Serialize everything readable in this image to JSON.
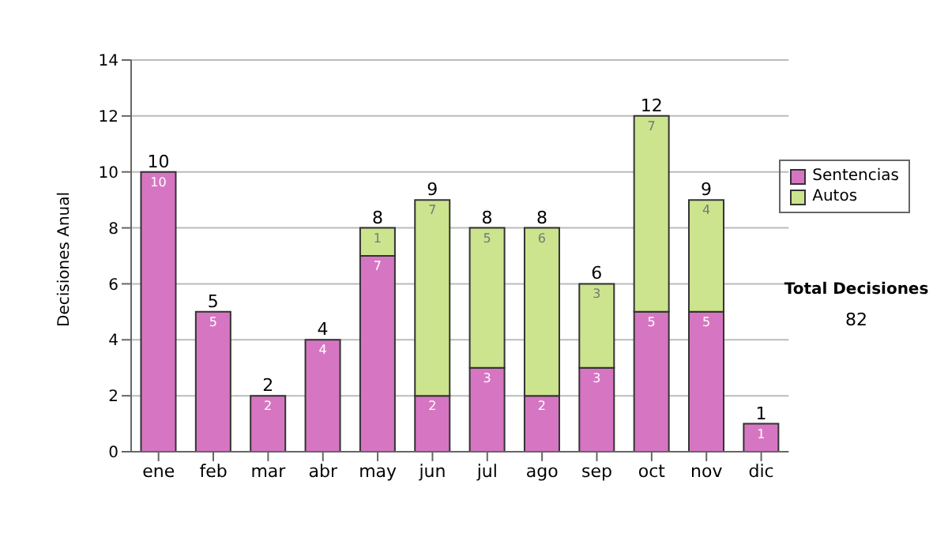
{
  "chart_data": {
    "type": "bar",
    "stacked": true,
    "ylabel": "Decisiones Anual",
    "categories": [
      "ene",
      "feb",
      "mar",
      "abr",
      "may",
      "jun",
      "jul",
      "ago",
      "sep",
      "oct",
      "nov",
      "dic"
    ],
    "series": [
      {
        "name": "Sentencias",
        "color": "#d676c2",
        "values": [
          10,
          5,
          2,
          4,
          7,
          2,
          3,
          2,
          3,
          5,
          5,
          1
        ]
      },
      {
        "name": "Autos",
        "color": "#cce48e",
        "values": [
          null,
          null,
          null,
          null,
          1,
          7,
          5,
          6,
          3,
          7,
          4,
          null
        ]
      }
    ],
    "totals": [
      "10",
      "5",
      "2",
      "4",
      "8",
      "9",
      "8",
      "8",
      "6",
      "12",
      "9",
      "1"
    ],
    "data_labels": true,
    "ylim": [
      0,
      14
    ],
    "yticks": [
      0,
      2,
      4,
      6,
      8,
      10,
      12,
      14
    ],
    "grid": "y",
    "legend": "right",
    "annotations": [
      "Total Decisiones",
      "82"
    ]
  }
}
